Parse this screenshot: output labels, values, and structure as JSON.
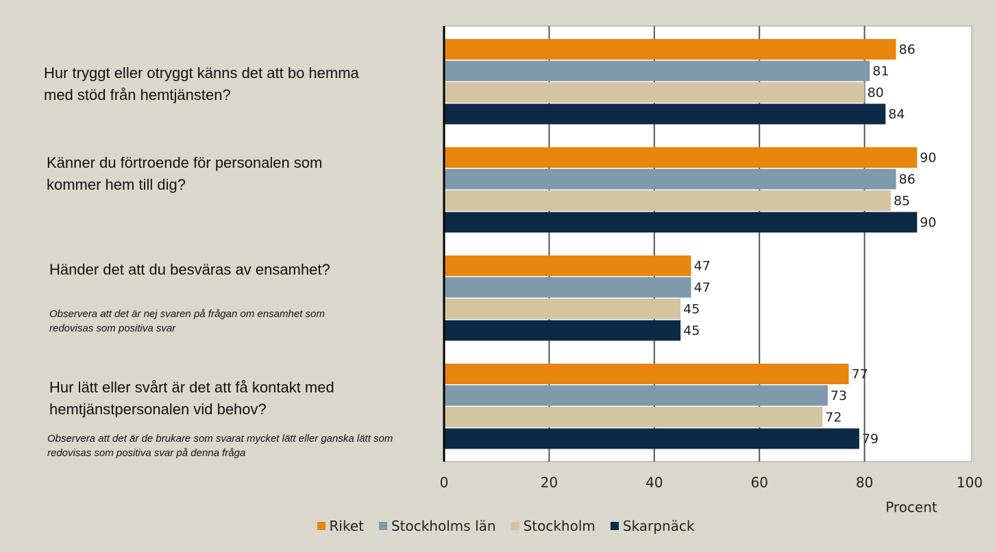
{
  "chart_data": {
    "type": "barh",
    "categories": [
      "Hur tryggt eller otryggt känns det att bo hemma med stöd från hemtjänsten?",
      "Känner du förtroende för personalen som kommer hem till dig?",
      "Händer det att du besväras av ensamhet?",
      "Hur lätt eller svårt är det att få kontakt med hemtjänstpersonalen vid behov?"
    ],
    "annotations": [
      "Observera att det är nej svaren på frågan om ensamhet som redovisas som positiva svar",
      "Observera att det är de brukare som svarat mycket lätt eller ganska lätt som redovisas som positiva svar på denna fråga"
    ],
    "series": [
      {
        "name": "Riket",
        "color": "#e8850c",
        "values": [
          86,
          90,
          47,
          77
        ]
      },
      {
        "name": "Stockholms län",
        "color": "#7e9aab",
        "values": [
          81,
          86,
          47,
          73
        ]
      },
      {
        "name": "Stockholm",
        "color": "#d5c4a1",
        "values": [
          80,
          85,
          45,
          72
        ]
      },
      {
        "name": "Skarpnäck",
        "color": "#0c2a45",
        "values": [
          84,
          90,
          45,
          79
        ]
      }
    ],
    "xlabel": "Procent",
    "xlim": [
      0,
      100
    ],
    "xticks": [
      0,
      20,
      40,
      60,
      80,
      100
    ],
    "grid": true,
    "legend": "bottom"
  }
}
